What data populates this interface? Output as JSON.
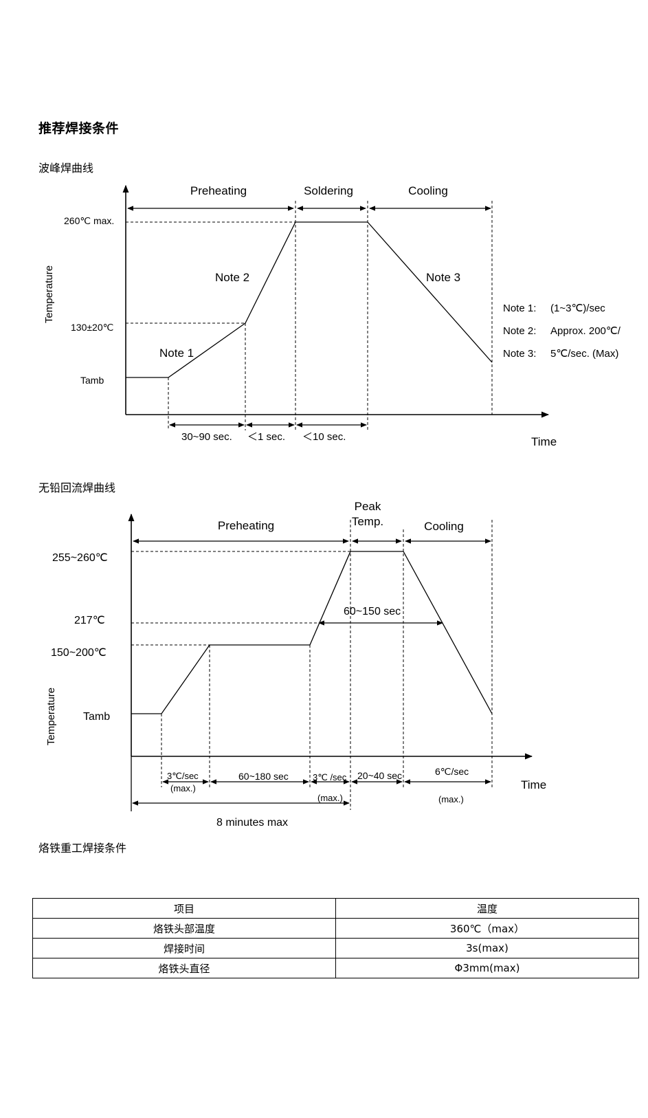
{
  "page": {
    "title": "推荐焊接条件",
    "wave_title": "波峰焊曲线",
    "reflow_title": "无铅回流焊曲线",
    "rework_title": "烙铁重工焊接条件"
  },
  "wave_profile": {
    "phase_preheating": "Preheating",
    "phase_soldering": "Soldering",
    "phase_cooling": "Cooling",
    "y_axis": "Temperature",
    "x_axis": "Time",
    "y_260": "260℃ max.",
    "y_130": "130±20℃",
    "y_tamb": "Tamb",
    "note1": "Note 1",
    "note2": "Note 2",
    "note3": "Note 3",
    "dur1": "30~90 sec.",
    "dur2": "＜1 sec.",
    "dur3": "＜10 sec.",
    "legend_1_key": "Note 1:",
    "legend_1_val": "(1~3℃)/sec",
    "legend_2_key": "Note 2:",
    "legend_2_val": "Approx. 200℃/",
    "legend_3_key": "Note 3:",
    "legend_3_val": "5℃/sec. (Max)"
  },
  "reflow_profile": {
    "phase_preheating": "Preheating",
    "phase_peak_1": "Peak",
    "phase_peak_2": "Temp.",
    "phase_cooling": "Cooling",
    "y_axis": "Temperature",
    "x_axis": "Time",
    "y_peak": "255~260℃",
    "y_217": "217℃",
    "y_150": "150~200℃",
    "y_tamb": "Tamb",
    "window": "60~150 sec",
    "rate1_a": "3℃/sec",
    "rate1_b": "(max.)",
    "soak": "60~180 sec",
    "rate2_a": "3℃ /sec",
    "rate2_b": "(max.)",
    "peak_time": "20~40 sec",
    "cool_a": "6℃/sec",
    "cool_b": "(max.)",
    "total": "8 minutes max"
  },
  "rework_table": {
    "header": [
      "项目",
      "温度"
    ],
    "rows": [
      [
        "烙铁头部温度",
        "360℃（max）"
      ],
      [
        "焊接时间",
        "3s(max)"
      ],
      [
        "烙铁头直径",
        "Φ3mm(max)"
      ]
    ]
  }
}
